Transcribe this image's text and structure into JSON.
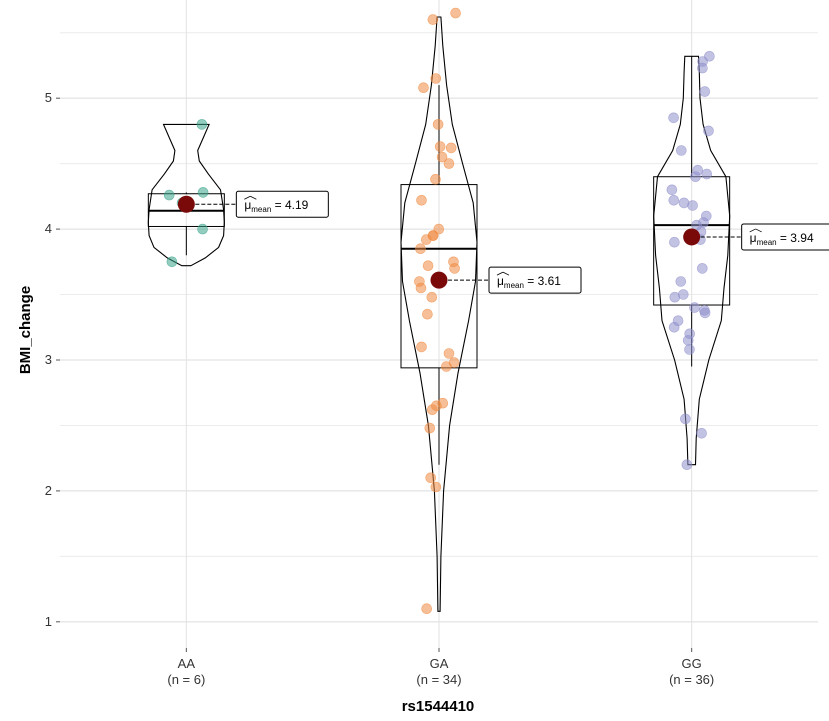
{
  "chart_data": {
    "type": "violin-box",
    "title": "",
    "xlabel": "rs1544410",
    "ylabel": "BMI_change",
    "ylim": [
      0.8,
      5.75
    ],
    "yticks": [
      1,
      2,
      3,
      4,
      5
    ],
    "grid": true,
    "mean_marker_color": "#7a0a0a",
    "mean_label_prefix": "μ",
    "mean_label_subscript": "mean",
    "groups": [
      {
        "category": "AA",
        "n_label": "(n = 6)",
        "color": "#3aa48a",
        "points": [
          4.8,
          4.28,
          4.26,
          4.2,
          4.0,
          3.75
        ],
        "mean": 4.19,
        "mean_label": "4.19",
        "box": {
          "q1": 4.02,
          "median": 4.14,
          "q3": 4.27,
          "whisker_low": 3.8,
          "whisker_high": 4.28
        },
        "violin": [
          [
            3.72,
            0.12
          ],
          [
            3.78,
            0.5
          ],
          [
            3.86,
            0.85
          ],
          [
            3.95,
            0.98
          ],
          [
            4.05,
            1.0
          ],
          [
            4.15,
            0.98
          ],
          [
            4.3,
            0.9
          ],
          [
            4.42,
            0.58
          ],
          [
            4.52,
            0.34
          ],
          [
            4.6,
            0.3
          ],
          [
            4.7,
            0.45
          ],
          [
            4.8,
            0.6
          ]
        ]
      },
      {
        "category": "GA",
        "n_label": "(n = 34)",
        "color": "#ef8a42",
        "points": [
          5.65,
          5.6,
          5.15,
          5.08,
          4.8,
          4.63,
          4.62,
          4.55,
          4.5,
          4.38,
          4.22,
          4.0,
          3.95,
          3.95,
          3.92,
          3.85,
          3.75,
          3.72,
          3.7,
          3.6,
          3.55,
          3.48,
          3.35,
          3.1,
          3.05,
          2.98,
          2.95,
          2.67,
          2.65,
          2.62,
          2.48,
          2.1,
          2.03,
          1.1
        ],
        "mean": 3.61,
        "mean_label": "3.61",
        "box": {
          "q1": 2.94,
          "median": 3.85,
          "q3": 4.34,
          "whisker_low": 2.2,
          "whisker_high": 5.1
        },
        "violin": [
          [
            1.08,
            0.03
          ],
          [
            1.5,
            0.05
          ],
          [
            2.0,
            0.12
          ],
          [
            2.5,
            0.28
          ],
          [
            2.9,
            0.5
          ],
          [
            3.3,
            0.78
          ],
          [
            3.6,
            0.96
          ],
          [
            3.9,
            1.0
          ],
          [
            4.2,
            0.9
          ],
          [
            4.5,
            0.62
          ],
          [
            4.8,
            0.35
          ],
          [
            5.1,
            0.2
          ],
          [
            5.4,
            0.1
          ],
          [
            5.62,
            0.05
          ]
        ]
      },
      {
        "category": "GG",
        "n_label": "(n = 36)",
        "color": "#9090cc",
        "points": [
          5.32,
          5.28,
          5.23,
          5.05,
          4.85,
          4.75,
          4.6,
          4.45,
          4.42,
          4.4,
          4.3,
          4.22,
          4.2,
          4.18,
          4.1,
          4.05,
          4.03,
          3.98,
          3.95,
          3.92,
          3.9,
          3.7,
          3.6,
          3.5,
          3.48,
          3.4,
          3.38,
          3.36,
          3.3,
          3.25,
          3.2,
          3.15,
          3.08,
          2.55,
          2.44,
          2.2
        ],
        "mean": 3.94,
        "mean_label": "3.94",
        "box": {
          "q1": 3.42,
          "median": 4.03,
          "q3": 4.4,
          "whisker_low": 2.95,
          "whisker_high": 5.32
        },
        "violin": [
          [
            2.2,
            0.1
          ],
          [
            2.4,
            0.12
          ],
          [
            2.7,
            0.2
          ],
          [
            3.0,
            0.45
          ],
          [
            3.3,
            0.78
          ],
          [
            3.55,
            0.85
          ],
          [
            3.8,
            0.95
          ],
          [
            4.1,
            1.0
          ],
          [
            4.4,
            0.9
          ],
          [
            4.6,
            0.5
          ],
          [
            4.8,
            0.3
          ],
          [
            5.0,
            0.22
          ],
          [
            5.2,
            0.2
          ],
          [
            5.32,
            0.18
          ]
        ]
      }
    ]
  }
}
